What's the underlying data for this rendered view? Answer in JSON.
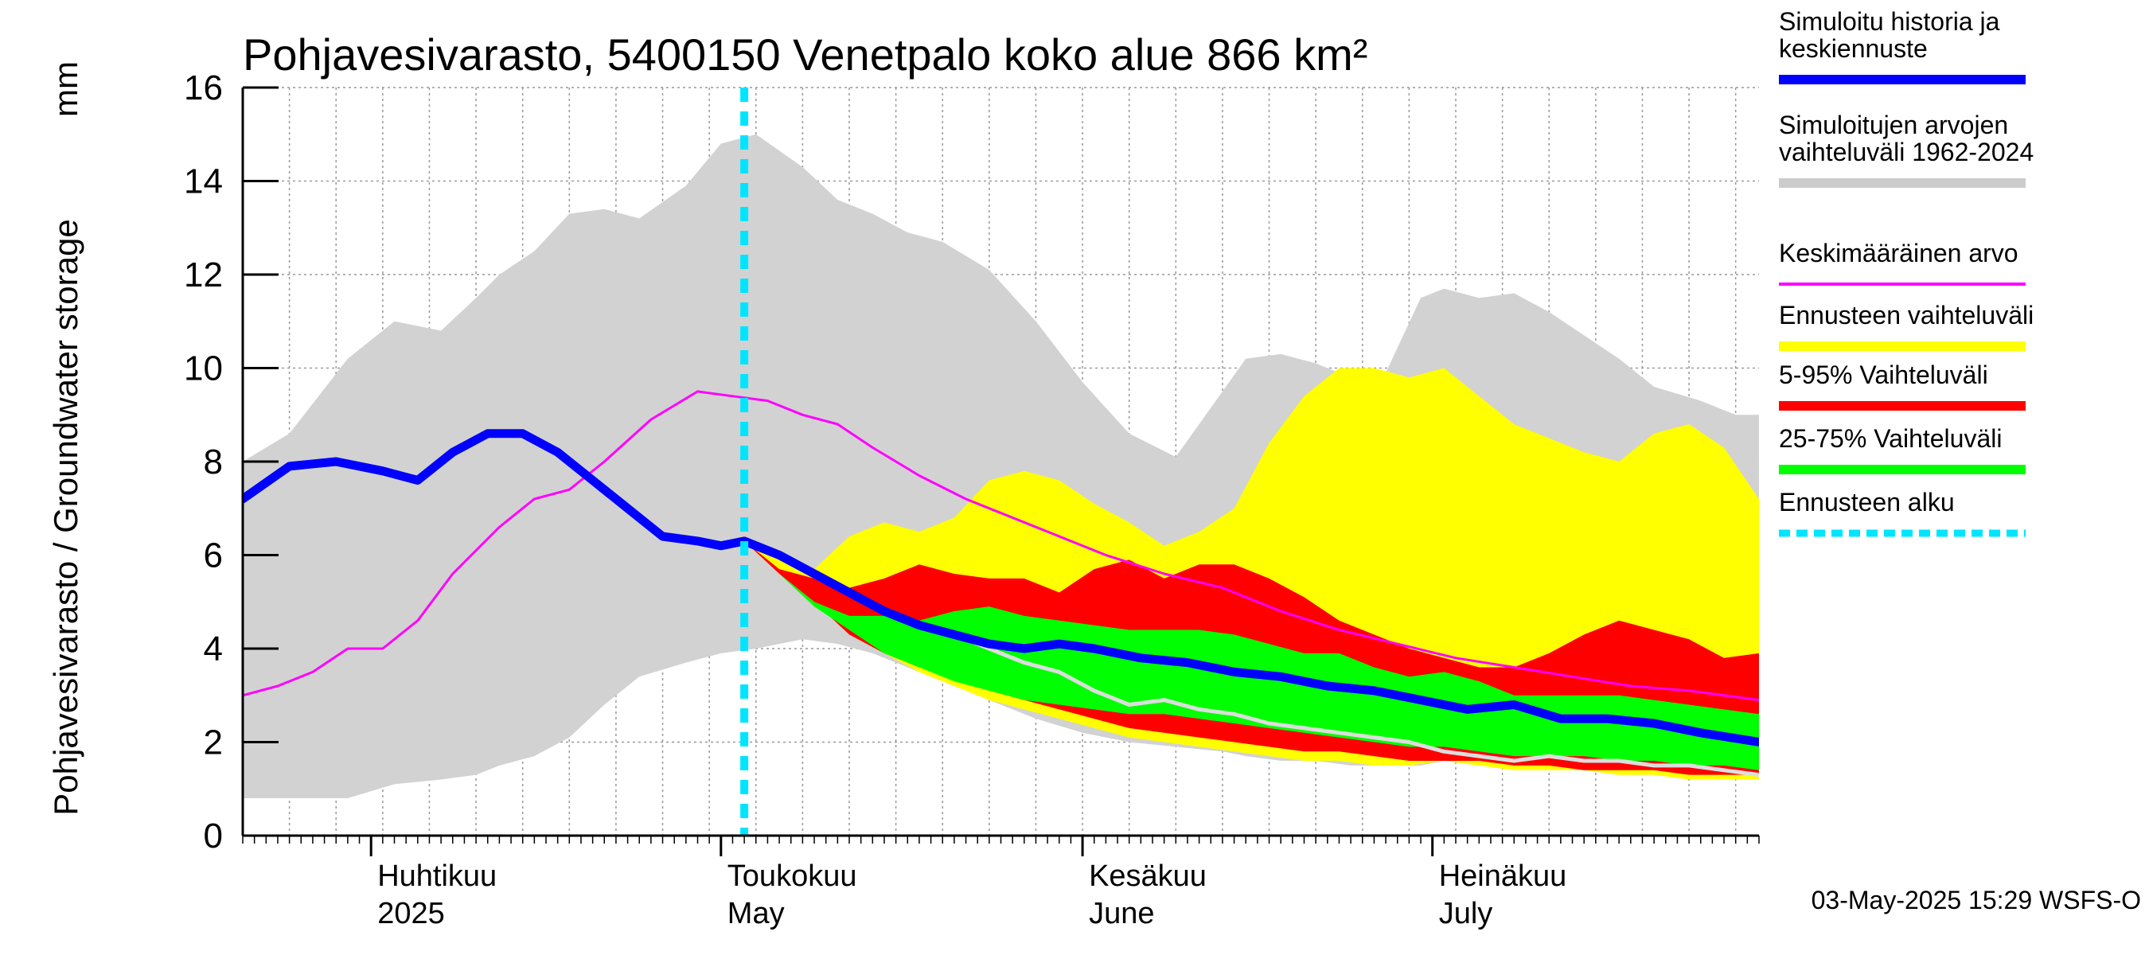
{
  "chart_data": {
    "type": "area",
    "title": "Pohjavesivarasto, 5400150 Venetpalo koko alue 866 km²",
    "ylabel": "Pohjavesivarasto / Groundwater storage",
    "yunit": "mm",
    "xlim": [
      "2025-03-21",
      "2025-07-29"
    ],
    "ylim": [
      0,
      16
    ],
    "yticks": [
      0,
      2,
      4,
      6,
      8,
      10,
      12,
      14,
      16
    ],
    "grid": true,
    "forecast_start": "2025-05-03",
    "months": [
      {
        "fi": "Huhtikuu",
        "en": "2025",
        "date": "2025-04-01"
      },
      {
        "fi": "Toukokuu",
        "en": "May",
        "date": "2025-05-01"
      },
      {
        "fi": "Kesäkuu",
        "en": "June",
        "date": "2025-06-01"
      },
      {
        "fi": "Heinäkuu",
        "en": "July",
        "date": "2025-07-01"
      }
    ],
    "bands": {
      "historical_range": {
        "dates": [
          "2025-03-21",
          "2025-03-25",
          "2025-03-30",
          "2025-04-03",
          "2025-04-07",
          "2025-04-10",
          "2025-04-12",
          "2025-04-15",
          "2025-04-18",
          "2025-04-21",
          "2025-04-24",
          "2025-04-28",
          "2025-05-01",
          "2025-05-04",
          "2025-05-08",
          "2025-05-11",
          "2025-05-14",
          "2025-05-17",
          "2025-05-20",
          "2025-05-24",
          "2025-05-28",
          "2025-06-01",
          "2025-06-05",
          "2025-06-09",
          "2025-06-13",
          "2025-06-15",
          "2025-06-18",
          "2025-06-21",
          "2025-06-24",
          "2025-06-27",
          "2025-06-30",
          "2025-07-02",
          "2025-07-05",
          "2025-07-08",
          "2025-07-11",
          "2025-07-14",
          "2025-07-17",
          "2025-07-20",
          "2025-07-24",
          "2025-07-27",
          "2025-07-29"
        ],
        "high": [
          8.0,
          8.6,
          10.2,
          11.0,
          10.8,
          11.5,
          12.0,
          12.5,
          13.3,
          13.4,
          13.2,
          13.9,
          14.8,
          15.0,
          14.3,
          13.6,
          13.3,
          12.9,
          12.7,
          12.1,
          11.0,
          9.7,
          8.6,
          8.1,
          9.5,
          10.2,
          10.3,
          10.1,
          9.8,
          9.9,
          11.5,
          11.7,
          11.5,
          11.6,
          11.2,
          10.7,
          10.2,
          9.6,
          9.3,
          9.0,
          9.0
        ],
        "low": [
          0.8,
          0.8,
          0.8,
          1.1,
          1.2,
          1.3,
          1.5,
          1.7,
          2.1,
          2.8,
          3.4,
          3.7,
          3.9,
          4.0,
          4.2,
          4.1,
          3.9,
          3.6,
          3.3,
          2.9,
          2.5,
          2.2,
          2.0,
          1.9,
          1.8,
          1.7,
          1.6,
          1.6,
          1.5,
          1.5,
          1.5,
          1.6,
          1.5,
          1.5,
          1.4,
          1.4,
          1.3,
          1.3,
          1.2,
          1.2,
          1.2
        ]
      },
      "forecast_range": {
        "dates": [
          "2025-05-03",
          "2025-05-06",
          "2025-05-09",
          "2025-05-12",
          "2025-05-15",
          "2025-05-18",
          "2025-05-21",
          "2025-05-24",
          "2025-05-27",
          "2025-05-30",
          "2025-06-02",
          "2025-06-05",
          "2025-06-08",
          "2025-06-11",
          "2025-06-14",
          "2025-06-17",
          "2025-06-20",
          "2025-06-23",
          "2025-06-26",
          "2025-06-29",
          "2025-07-02",
          "2025-07-05",
          "2025-07-08",
          "2025-07-11",
          "2025-07-14",
          "2025-07-17",
          "2025-07-20",
          "2025-07-23",
          "2025-07-26",
          "2025-07-29"
        ],
        "high": [
          6.4,
          6.0,
          5.7,
          6.4,
          6.7,
          6.5,
          6.8,
          7.6,
          7.8,
          7.6,
          7.1,
          6.7,
          6.2,
          6.5,
          7.0,
          8.4,
          9.4,
          10.0,
          10.0,
          9.8,
          10.0,
          9.4,
          8.8,
          8.5,
          8.2,
          8.0,
          8.6,
          8.8,
          8.3,
          7.2
        ],
        "low": [
          6.3,
          5.6,
          5.0,
          4.3,
          3.9,
          3.5,
          3.2,
          2.9,
          2.7,
          2.5,
          2.3,
          2.1,
          2.0,
          1.9,
          1.8,
          1.7,
          1.6,
          1.6,
          1.5,
          1.5,
          1.6,
          1.5,
          1.4,
          1.4,
          1.4,
          1.3,
          1.3,
          1.2,
          1.2,
          1.2
        ]
      },
      "p5_95": {
        "dates": [
          "2025-05-03",
          "2025-05-06",
          "2025-05-09",
          "2025-05-12",
          "2025-05-15",
          "2025-05-18",
          "2025-05-21",
          "2025-05-24",
          "2025-05-27",
          "2025-05-30",
          "2025-06-02",
          "2025-06-05",
          "2025-06-08",
          "2025-06-11",
          "2025-06-14",
          "2025-06-17",
          "2025-06-20",
          "2025-06-23",
          "2025-06-26",
          "2025-06-29",
          "2025-07-02",
          "2025-07-05",
          "2025-07-08",
          "2025-07-11",
          "2025-07-14",
          "2025-07-17",
          "2025-07-20",
          "2025-07-23",
          "2025-07-26",
          "2025-07-29"
        ],
        "high": [
          6.3,
          5.7,
          5.5,
          5.3,
          5.5,
          5.8,
          5.6,
          5.5,
          5.5,
          5.2,
          5.7,
          5.9,
          5.5,
          5.8,
          5.8,
          5.5,
          5.1,
          4.6,
          4.3,
          4.0,
          3.8,
          3.6,
          3.6,
          3.9,
          4.3,
          4.6,
          4.4,
          4.2,
          3.8,
          3.9
        ],
        "low": [
          6.3,
          5.6,
          5.0,
          4.3,
          3.9,
          3.6,
          3.4,
          3.1,
          2.9,
          2.7,
          2.5,
          2.3,
          2.2,
          2.1,
          2.0,
          1.9,
          1.8,
          1.8,
          1.7,
          1.6,
          1.6,
          1.6,
          1.5,
          1.5,
          1.4,
          1.4,
          1.4,
          1.3,
          1.3,
          1.3
        ]
      },
      "p25_75": {
        "dates": [
          "2025-05-03",
          "2025-05-06",
          "2025-05-09",
          "2025-05-12",
          "2025-05-15",
          "2025-05-18",
          "2025-05-21",
          "2025-05-24",
          "2025-05-27",
          "2025-05-30",
          "2025-06-02",
          "2025-06-05",
          "2025-06-08",
          "2025-06-11",
          "2025-06-14",
          "2025-06-17",
          "2025-06-20",
          "2025-06-23",
          "2025-06-26",
          "2025-06-29",
          "2025-07-02",
          "2025-07-05",
          "2025-07-08",
          "2025-07-11",
          "2025-07-14",
          "2025-07-17",
          "2025-07-20",
          "2025-07-23",
          "2025-07-26",
          "2025-07-29"
        ],
        "high": [
          6.3,
          5.6,
          5.0,
          4.7,
          4.7,
          4.6,
          4.8,
          4.9,
          4.7,
          4.6,
          4.5,
          4.4,
          4.4,
          4.4,
          4.3,
          4.1,
          3.9,
          3.9,
          3.6,
          3.4,
          3.5,
          3.3,
          3.0,
          3.0,
          3.0,
          3.0,
          2.9,
          2.8,
          2.7,
          2.6
        ],
        "low": [
          6.3,
          5.6,
          4.9,
          4.4,
          3.9,
          3.6,
          3.3,
          3.1,
          2.9,
          2.8,
          2.7,
          2.6,
          2.6,
          2.5,
          2.4,
          2.3,
          2.2,
          2.1,
          2.0,
          1.9,
          1.9,
          1.8,
          1.7,
          1.7,
          1.7,
          1.6,
          1.6,
          1.5,
          1.5,
          1.4
        ]
      }
    },
    "series": [
      {
        "name": "Keskimääräinen arvo",
        "color": "#ff00ff",
        "dates": [
          "2025-03-21",
          "2025-03-24",
          "2025-03-27",
          "2025-03-30",
          "2025-04-02",
          "2025-04-05",
          "2025-04-08",
          "2025-04-12",
          "2025-04-15",
          "2025-04-18",
          "2025-04-21",
          "2025-04-25",
          "2025-04-29",
          "2025-05-02",
          "2025-05-05",
          "2025-05-08",
          "2025-05-11",
          "2025-05-14",
          "2025-05-18",
          "2025-05-22",
          "2025-05-26",
          "2025-05-30",
          "2025-06-03",
          "2025-06-08",
          "2025-06-13",
          "2025-06-18",
          "2025-06-23",
          "2025-06-28",
          "2025-07-03",
          "2025-07-08",
          "2025-07-13",
          "2025-07-18",
          "2025-07-23",
          "2025-07-29"
        ],
        "values": [
          3.0,
          3.2,
          3.5,
          4.0,
          4.0,
          4.6,
          5.6,
          6.6,
          7.2,
          7.4,
          8.0,
          8.9,
          9.5,
          9.4,
          9.3,
          9.0,
          8.8,
          8.3,
          7.7,
          7.2,
          6.8,
          6.4,
          6.0,
          5.6,
          5.3,
          4.8,
          4.4,
          4.1,
          3.8,
          3.6,
          3.4,
          3.2,
          3.1,
          2.9
        ]
      },
      {
        "name": "Simuloitu historia ja keskiennuste",
        "color": "#0000ff",
        "dates": [
          "2025-03-21",
          "2025-03-25",
          "2025-03-29",
          "2025-04-02",
          "2025-04-05",
          "2025-04-08",
          "2025-04-11",
          "2025-04-14",
          "2025-04-17",
          "2025-04-20",
          "2025-04-23",
          "2025-04-26",
          "2025-04-29",
          "2025-05-01",
          "2025-05-03",
          "2025-05-06",
          "2025-05-09",
          "2025-05-12",
          "2025-05-15",
          "2025-05-18",
          "2025-05-21",
          "2025-05-24",
          "2025-05-27",
          "2025-05-30",
          "2025-06-02",
          "2025-06-06",
          "2025-06-10",
          "2025-06-14",
          "2025-06-18",
          "2025-06-22",
          "2025-06-26",
          "2025-06-30",
          "2025-07-04",
          "2025-07-08",
          "2025-07-12",
          "2025-07-16",
          "2025-07-20",
          "2025-07-24",
          "2025-07-29"
        ],
        "values": [
          7.2,
          7.9,
          8.0,
          7.8,
          7.6,
          8.2,
          8.6,
          8.6,
          8.2,
          7.6,
          7.0,
          6.4,
          6.3,
          6.2,
          6.3,
          6.0,
          5.6,
          5.2,
          4.8,
          4.5,
          4.3,
          4.1,
          4.0,
          4.1,
          4.0,
          3.8,
          3.7,
          3.5,
          3.4,
          3.2,
          3.1,
          2.9,
          2.7,
          2.8,
          2.5,
          2.5,
          2.4,
          2.2,
          2.0
        ]
      },
      {
        "name": "",
        "color": "#dddddd",
        "dates": [
          "2025-05-21",
          "2025-05-24",
          "2025-05-27",
          "2025-05-30",
          "2025-06-02",
          "2025-06-05",
          "2025-06-08",
          "2025-06-11",
          "2025-06-14",
          "2025-06-17",
          "2025-06-20",
          "2025-06-23",
          "2025-06-26",
          "2025-06-29",
          "2025-07-02",
          "2025-07-05",
          "2025-07-08",
          "2025-07-11",
          "2025-07-14",
          "2025-07-17",
          "2025-07-20",
          "2025-07-23",
          "2025-07-26",
          "2025-07-29"
        ],
        "values": [
          4.3,
          4.0,
          3.7,
          3.5,
          3.1,
          2.8,
          2.9,
          2.7,
          2.6,
          2.4,
          2.3,
          2.2,
          2.1,
          2.0,
          1.8,
          1.7,
          1.6,
          1.7,
          1.6,
          1.6,
          1.5,
          1.5,
          1.4,
          1.3
        ]
      }
    ],
    "legend": {
      "placement": "right",
      "entries": [
        {
          "label": "Simuloitu historia ja keskiennuste",
          "color": "#0000ff",
          "style": "thick"
        },
        {
          "label": "Simuloitujen arvojen vaihteluväli 1962-2024",
          "color": "#cccccc",
          "style": "band"
        },
        {
          "label": "Keskimääräinen arvo",
          "color": "#ff00ff",
          "style": "line"
        },
        {
          "label": "Ennusteen vaihteluväli",
          "color": "#ffff00",
          "style": "band"
        },
        {
          "label": "5-95% Vaihteluväli",
          "color": "#ff0000",
          "style": "band"
        },
        {
          "label": "25-75% Vaihteluväli",
          "color": "#00ff00",
          "style": "band"
        },
        {
          "label": "Ennusteen alku",
          "color": "#00e5ff",
          "style": "dashed"
        }
      ]
    },
    "footer": "03-May-2025 15:29 WSFS-O"
  }
}
